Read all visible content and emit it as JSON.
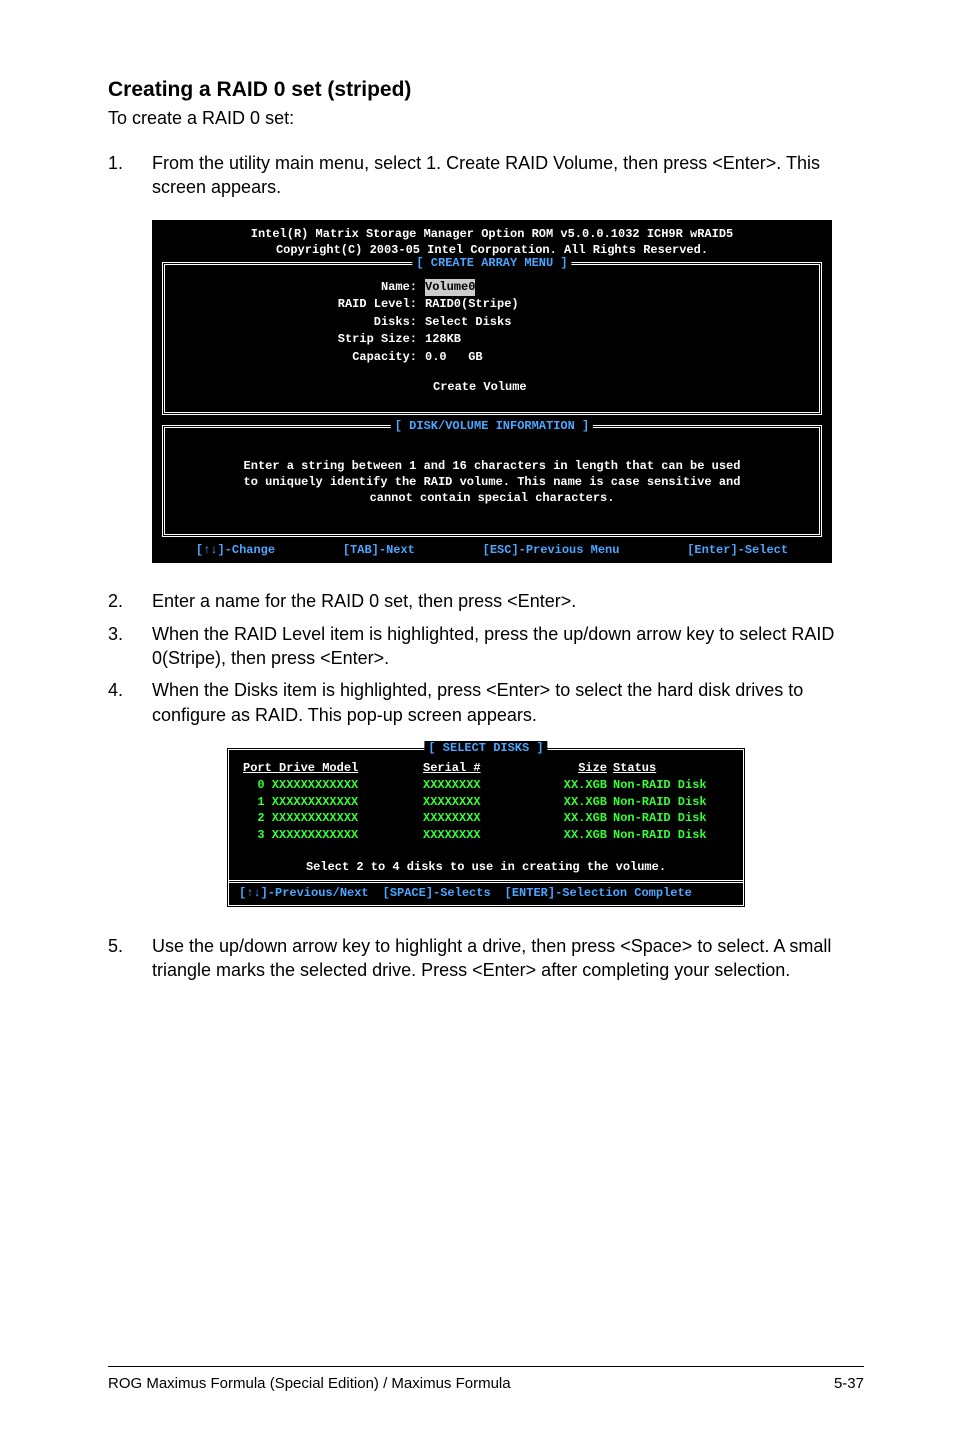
{
  "heading": "Creating a RAID 0 set (striped)",
  "intro": "To create a RAID 0 set:",
  "step1": {
    "num": "1.",
    "text": "From the utility main menu, select 1. Create RAID Volume, then press <Enter>. This screen appears."
  },
  "bios1": {
    "title1": "Intel(R) Matrix Storage Manager Option ROM v5.0.0.1032 ICH9R wRAID5",
    "title2": "Copyright(C) 2003-05 Intel Corporation. All Rights Reserved.",
    "menu_label": "[ CREATE ARRAY MENU ]",
    "fields": {
      "name": {
        "label": "Name:",
        "value": "Volume0"
      },
      "raid": {
        "label": "RAID Level:",
        "value": "RAID0(Stripe)"
      },
      "disks": {
        "label": "Disks:",
        "value": "Select Disks"
      },
      "strip": {
        "label": "Strip Size:",
        "value": "128KB"
      },
      "cap": {
        "label": "Capacity:",
        "value": "0.0   GB"
      }
    },
    "create": "Create Volume",
    "info_label": "[ DISK/VOLUME INFORMATION ]",
    "info1": "Enter a string between 1 and 16 characters in length that can be used",
    "info2": "to uniquely identify the RAID volume. This name is case sensitive and",
    "info3": "cannot contain special characters.",
    "footer": {
      "a": "[↑↓]-Change",
      "b": "[TAB]-Next",
      "c": "[ESC]-Previous Menu",
      "d": "[Enter]-Select"
    }
  },
  "step2": {
    "num": "2.",
    "text": "Enter a name for the RAID 0 set, then press <Enter>."
  },
  "step3": {
    "num": "3.",
    "text": "When the RAID Level item is highlighted, press the up/down arrow key to select RAID 0(Stripe), then press <Enter>."
  },
  "step4": {
    "num": "4.",
    "text": "When the Disks item is highlighted, press <Enter> to select the hard disk drives to configure as RAID. This pop-up screen appears."
  },
  "disks": {
    "label": "[ SELECT DISKS ]",
    "head": {
      "model": "Port Drive Model",
      "serial": "Serial #",
      "size": "Size",
      "status": "Status"
    },
    "rows": [
      {
        "model": "  0 XXXXXXXXXXXX",
        "serial": "XXXXXXXX",
        "size": "XX.XGB",
        "status": "Non-RAID Disk"
      },
      {
        "model": "  1 XXXXXXXXXXXX",
        "serial": "XXXXXXXX",
        "size": "XX.XGB",
        "status": "Non-RAID Disk"
      },
      {
        "model": "  2 XXXXXXXXXXXX",
        "serial": "XXXXXXXX",
        "size": "XX.XGB",
        "status": "Non-RAID Disk"
      },
      {
        "model": "  3 XXXXXXXXXXXX",
        "serial": "XXXXXXXX",
        "size": "XX.XGB",
        "status": "Non-RAID Disk"
      }
    ],
    "msg": "Select 2 to 4 disks to use in creating the volume.",
    "footer": {
      "a": "[↑↓]-Previous/Next",
      "b": "[SPACE]-Selects",
      "c": "[ENTER]-Selection Complete"
    }
  },
  "step5": {
    "num": "5.",
    "text": "Use the up/down arrow key to highlight a drive, then press <Space>  to select. A small triangle marks the selected drive. Press <Enter> after completing your selection."
  },
  "footer": {
    "left": "ROG Maximus Formula (Special Edition) / Maximus Formula",
    "right": "5-37"
  }
}
